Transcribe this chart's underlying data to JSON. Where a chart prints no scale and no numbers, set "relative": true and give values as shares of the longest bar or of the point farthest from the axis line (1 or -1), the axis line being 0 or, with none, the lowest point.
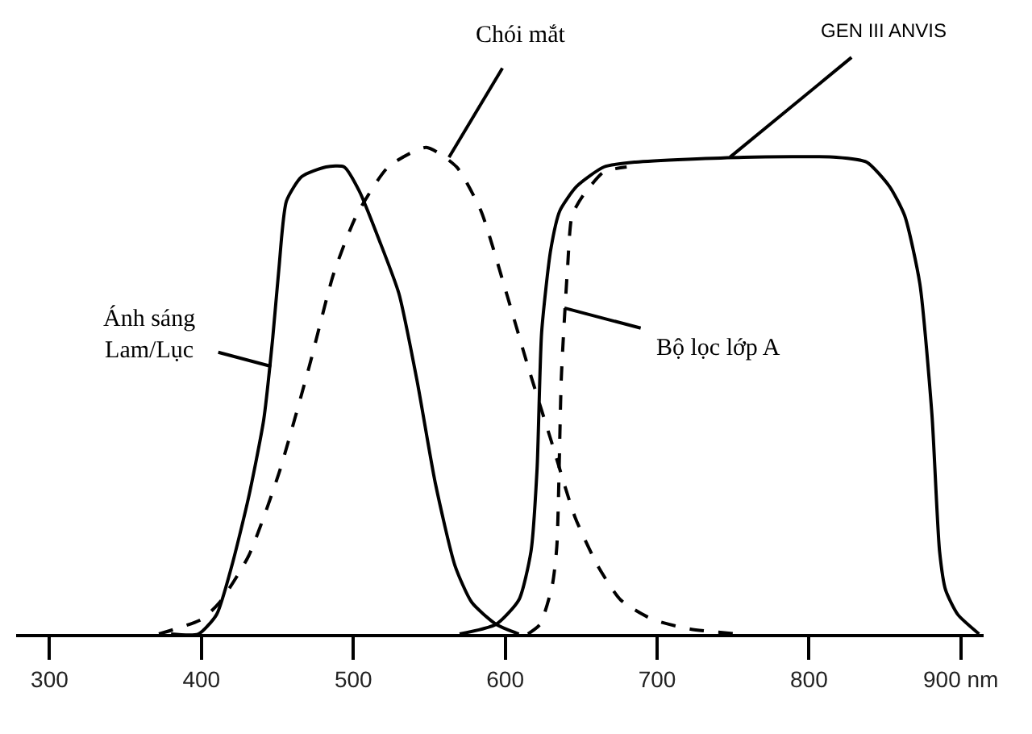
{
  "chart_data": {
    "type": "line",
    "relative": true,
    "xlim": [
      278,
      915
    ],
    "xticks": [
      300,
      400,
      500,
      600,
      700,
      800,
      {
        "value": 900,
        "label": "900 nm"
      }
    ],
    "series": [
      {
        "color": "#000000",
        "line_style": "solid",
        "x": [
          380,
          398,
          410,
          420,
          431,
          441,
          447,
          451,
          456,
          466,
          482,
          494,
          504,
          517,
          530,
          542,
          554,
          567,
          578,
          594,
          609
        ],
        "values": [
          0,
          0,
          0.04,
          0.14,
          0.28,
          0.44,
          0.61,
          0.75,
          0.89,
          0.94,
          0.96,
          0.96,
          0.91,
          0.81,
          0.7,
          0.52,
          0.31,
          0.14,
          0.065,
          0.02,
          0
        ]
      },
      {
        "color": "#000000",
        "line_style": "dashed",
        "x": [
          372,
          400,
          412,
          431,
          451,
          471,
          487,
          502,
          523,
          548,
          568,
          584,
          599,
          615,
          630,
          646,
          661,
          676,
          697,
          722,
          753
        ],
        "values": [
          0,
          0.03,
          0.065,
          0.16,
          0.33,
          0.55,
          0.74,
          0.86,
          0.96,
          1.0,
          0.96,
          0.87,
          0.72,
          0.55,
          0.4,
          0.24,
          0.14,
          0.07,
          0.03,
          0.01,
          0
        ]
      },
      {
        "color": "#000000",
        "line_style": "solid",
        "x": [
          570,
          594,
          609,
          617,
          621,
          624,
          630,
          636,
          647,
          665,
          686,
          757,
          818,
          838,
          853,
          863,
          873,
          881,
          886,
          890,
          898,
          912
        ],
        "values": [
          0,
          0.02,
          0.07,
          0.17,
          0.34,
          0.62,
          0.79,
          0.87,
          0.92,
          0.96,
          0.97,
          0.98,
          0.98,
          0.97,
          0.92,
          0.86,
          0.72,
          0.45,
          0.17,
          0.09,
          0.04,
          0
        ]
      },
      {
        "color": "#000000",
        "line_style": "dashed",
        "x": [
          615,
          623,
          631,
          634,
          637,
          641,
          644,
          651,
          665,
          680
        ],
        "values": [
          0,
          0.02,
          0.1,
          0.18,
          0.53,
          0.75,
          0.86,
          0.9,
          0.95,
          0.96
        ]
      }
    ],
    "annotations": [
      {
        "text": "Ánh sáng\nLam/Lục",
        "x": 446,
        "y": 0.55
      },
      {
        "text": "Chói mắt",
        "x": 563,
        "y": 0.98
      },
      {
        "text": "GEN III ANVIS",
        "x": 748,
        "y": 0.98
      },
      {
        "text": "Bộ lọc lớp A",
        "x": 639,
        "y": 0.67
      }
    ]
  }
}
